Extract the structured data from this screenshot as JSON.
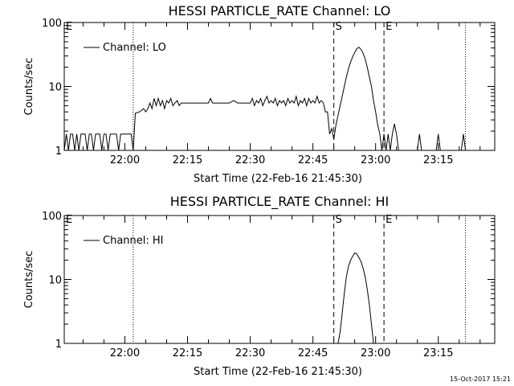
{
  "footer": {
    "timestamp": "15-Oct-2017 15:21"
  },
  "chart_data": [
    {
      "type": "line",
      "title": "HESSI PARTICLE_RATE Channel: LO",
      "xlabel": "Start Time (22-Feb-16 21:45:30)",
      "ylabel": "Counts/sec",
      "yscale": "log",
      "ylim": [
        1,
        100
      ],
      "xlim": [
        "21:45:30",
        "23:28:30"
      ],
      "x_tick_labels": [
        "22:00",
        "22:15",
        "22:30",
        "22:45",
        "23:00",
        "23:15"
      ],
      "y_tick_labels": [
        "1",
        "10",
        "100"
      ],
      "legend": {
        "position": "top-left",
        "label": "Channel: LO"
      },
      "markers": [
        {
          "label": "E",
          "time": "21:45:30",
          "style": "dotted"
        },
        {
          "label": "",
          "time": "22:02:00",
          "style": "dotted"
        },
        {
          "label": "S",
          "time": "22:50:00",
          "style": "dashed"
        },
        {
          "label": "E",
          "time": "23:02:00",
          "style": "dashed"
        },
        {
          "label": "",
          "time": "23:21:30",
          "style": "dotted"
        }
      ],
      "series": [
        {
          "name": "Channel: LO",
          "points": [
            [
              "21:45:30",
              1
            ],
            [
              "21:46:00",
              1.8
            ],
            [
              "21:46:30",
              1
            ],
            [
              "21:47:00",
              1.8
            ],
            [
              "21:47:30",
              1.8
            ],
            [
              "21:48:00",
              1
            ],
            [
              "21:48:30",
              1.8
            ],
            [
              "21:49:00",
              1
            ],
            [
              "21:49:30",
              1.8
            ],
            [
              "21:50:00",
              1.8
            ],
            [
              "21:50:30",
              1.8
            ],
            [
              "21:51:00",
              1
            ],
            [
              "21:51:30",
              1.8
            ],
            [
              "21:52:00",
              1.8
            ],
            [
              "21:52:30",
              1
            ],
            [
              "21:53:00",
              1.8
            ],
            [
              "21:53:30",
              1.8
            ],
            [
              "21:54:00",
              1.8
            ],
            [
              "21:54:30",
              1
            ],
            [
              "21:55:00",
              1.8
            ],
            [
              "21:55:30",
              1.8
            ],
            [
              "21:56:00",
              1
            ],
            [
              "21:56:30",
              1.8
            ],
            [
              "21:57:00",
              1.8
            ],
            [
              "21:57:30",
              1.8
            ],
            [
              "21:58:00",
              1.8
            ],
            [
              "21:58:30",
              1
            ],
            [
              "21:59:00",
              1.8
            ],
            [
              "21:59:30",
              1.8
            ],
            [
              "22:00:00",
              1.8
            ],
            [
              "22:00:30",
              1.8
            ],
            [
              "22:01:00",
              1.8
            ],
            [
              "22:01:30",
              1.8
            ],
            [
              "22:02:00",
              1
            ],
            [
              "22:02:30",
              3.8
            ],
            [
              "22:03:30",
              4
            ],
            [
              "22:04:30",
              4.5
            ],
            [
              "22:05:00",
              4
            ],
            [
              "22:05:30",
              4.5
            ],
            [
              "22:06:00",
              5.5
            ],
            [
              "22:06:30",
              4.5
            ],
            [
              "22:07:00",
              6.5
            ],
            [
              "22:07:30",
              5
            ],
            [
              "22:08:00",
              6.5
            ],
            [
              "22:08:30",
              5
            ],
            [
              "22:09:00",
              6
            ],
            [
              "22:09:30",
              4.5
            ],
            [
              "22:10:00",
              6
            ],
            [
              "22:10:30",
              5.5
            ],
            [
              "22:11:00",
              6.5
            ],
            [
              "22:11:30",
              5
            ],
            [
              "22:12:00",
              5.5
            ],
            [
              "22:12:30",
              6
            ],
            [
              "22:13:00",
              5
            ],
            [
              "22:13:30",
              5.5
            ],
            [
              "22:14:00",
              5.5
            ],
            [
              "22:15:00",
              5.5
            ],
            [
              "22:16:00",
              5.5
            ],
            [
              "22:17:00",
              5.5
            ],
            [
              "22:18:00",
              5.5
            ],
            [
              "22:19:00",
              5.5
            ],
            [
              "22:20:00",
              5.5
            ],
            [
              "22:20:30",
              6.5
            ],
            [
              "22:21:00",
              5.5
            ],
            [
              "22:22:00",
              5.5
            ],
            [
              "22:23:00",
              5.5
            ],
            [
              "22:24:00",
              5.5
            ],
            [
              "22:25:00",
              5.5
            ],
            [
              "22:26:00",
              6
            ],
            [
              "22:27:00",
              5.5
            ],
            [
              "22:28:00",
              5.5
            ],
            [
              "22:29:00",
              5.5
            ],
            [
              "22:30:00",
              5.5
            ],
            [
              "22:30:30",
              6.5
            ],
            [
              "22:31:00",
              5
            ],
            [
              "22:31:30",
              6
            ],
            [
              "22:32:00",
              5.5
            ],
            [
              "22:32:30",
              6.5
            ],
            [
              "22:33:00",
              5
            ],
            [
              "22:33:30",
              6
            ],
            [
              "22:34:00",
              7
            ],
            [
              "22:34:30",
              5.5
            ],
            [
              "22:35:00",
              6
            ],
            [
              "22:35:30",
              5.5
            ],
            [
              "22:36:00",
              6.5
            ],
            [
              "22:36:30",
              5
            ],
            [
              "22:37:00",
              6
            ],
            [
              "22:37:30",
              5.5
            ],
            [
              "22:38:00",
              6
            ],
            [
              "22:38:30",
              5
            ],
            [
              "22:39:00",
              6.5
            ],
            [
              "22:39:30",
              5.5
            ],
            [
              "22:40:00",
              6
            ],
            [
              "22:40:30",
              5.5
            ],
            [
              "22:41:00",
              7
            ],
            [
              "22:41:30",
              5
            ],
            [
              "22:42:00",
              6
            ],
            [
              "22:42:30",
              5.5
            ],
            [
              "22:43:00",
              6.5
            ],
            [
              "22:43:30",
              5
            ],
            [
              "22:44:00",
              6.5
            ],
            [
              "22:44:30",
              5.5
            ],
            [
              "22:45:00",
              6
            ],
            [
              "22:45:30",
              5.5
            ],
            [
              "22:46:00",
              7
            ],
            [
              "22:46:30",
              5.5
            ],
            [
              "22:47:00",
              6
            ],
            [
              "22:47:30",
              5.5
            ],
            [
              "22:48:00",
              4
            ],
            [
              "22:48:30",
              4
            ],
            [
              "22:49:00",
              1.8
            ],
            [
              "22:49:30",
              2.2
            ],
            [
              "22:50:00",
              1.5
            ],
            [
              "22:50:30",
              2.5
            ],
            [
              "22:51:00",
              3.5
            ],
            [
              "22:51:30",
              5
            ],
            [
              "22:52:00",
              7
            ],
            [
              "22:52:30",
              10
            ],
            [
              "22:53:00",
              14
            ],
            [
              "22:53:30",
              19
            ],
            [
              "22:54:00",
              24
            ],
            [
              "22:54:30",
              29
            ],
            [
              "22:55:00",
              34
            ],
            [
              "22:55:30",
              39
            ],
            [
              "22:56:00",
              41
            ],
            [
              "22:56:30",
              38
            ],
            [
              "22:57:00",
              33
            ],
            [
              "22:57:30",
              27
            ],
            [
              "22:58:00",
              20
            ],
            [
              "22:58:30",
              14
            ],
            [
              "22:59:00",
              10
            ],
            [
              "22:59:30",
              6
            ],
            [
              "23:00:00",
              4
            ],
            [
              "23:00:30",
              2.5
            ],
            [
              "23:01:00",
              1.8
            ],
            [
              "23:01:30",
              1
            ],
            [
              "23:02:00",
              1.8
            ],
            [
              "23:02:30",
              1
            ],
            [
              "23:03:00",
              1.8
            ],
            [
              "23:03:30",
              1
            ],
            [
              "23:04:00",
              1.8
            ],
            [
              "23:04:30",
              2.6
            ],
            [
              "23:05:00",
              1.8
            ],
            [
              "23:05:30",
              1
            ],
            [
              "23:06:00",
              1
            ],
            [
              "23:10:00",
              1
            ],
            [
              "23:10:30",
              1.8
            ],
            [
              "23:11:00",
              1
            ],
            [
              "23:14:30",
              1
            ],
            [
              "23:15:00",
              1.8
            ],
            [
              "23:15:30",
              1
            ],
            [
              "23:20:30",
              1
            ],
            [
              "23:21:00",
              1.8
            ],
            [
              "23:21:30",
              1
            ]
          ]
        }
      ]
    },
    {
      "type": "line",
      "title": "HESSI PARTICLE_RATE Channel: HI",
      "xlabel": "Start Time (22-Feb-16 21:45:30)",
      "ylabel": "Counts/sec",
      "yscale": "log",
      "ylim": [
        1,
        100
      ],
      "xlim": [
        "21:45:30",
        "23:28:30"
      ],
      "x_tick_labels": [
        "22:00",
        "22:15",
        "22:30",
        "22:45",
        "23:00",
        "23:15"
      ],
      "y_tick_labels": [
        "1",
        "10",
        "100"
      ],
      "legend": {
        "position": "top-left",
        "label": "Channel: HI"
      },
      "markers": [
        {
          "label": "E",
          "time": "21:45:30",
          "style": "dotted"
        },
        {
          "label": "",
          "time": "22:02:00",
          "style": "dotted"
        },
        {
          "label": "S",
          "time": "22:50:00",
          "style": "dashed"
        },
        {
          "label": "E",
          "time": "23:02:00",
          "style": "dashed"
        },
        {
          "label": "",
          "time": "23:21:30",
          "style": "dotted"
        }
      ],
      "series": [
        {
          "name": "Channel: HI",
          "points": [
            [
              "22:51:00",
              1
            ],
            [
              "22:51:30",
              1.5
            ],
            [
              "22:52:00",
              3
            ],
            [
              "22:52:30",
              6
            ],
            [
              "22:53:00",
              11
            ],
            [
              "22:53:30",
              16
            ],
            [
              "22:54:00",
              20
            ],
            [
              "22:54:30",
              23
            ],
            [
              "22:55:00",
              26
            ],
            [
              "22:55:30",
              25
            ],
            [
              "22:56:00",
              22
            ],
            [
              "22:56:30",
              19
            ],
            [
              "22:57:00",
              15
            ],
            [
              "22:57:30",
              11
            ],
            [
              "22:58:00",
              7
            ],
            [
              "22:58:30",
              4
            ],
            [
              "22:59:00",
              2
            ],
            [
              "22:59:30",
              1
            ]
          ]
        }
      ]
    }
  ]
}
